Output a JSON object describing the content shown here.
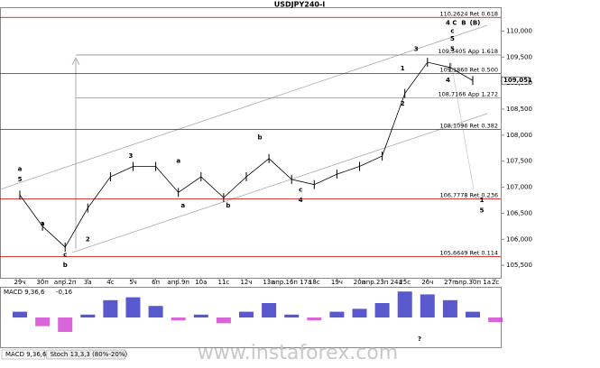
{
  "chart_data": [
    {
      "type": "line",
      "title": "USDJPY240-I",
      "categories": [
        "29ч",
        "30п",
        "апр.2п",
        "3а",
        "4с",
        "5ч",
        "6п",
        "апр.9п",
        "10а",
        "11с",
        "12ч",
        "13п",
        "апр.16п 17а",
        "18с",
        "19ч",
        "20п",
        "апр.23п 24а",
        "25с",
        "26ч",
        "27п",
        "апр.30п 1а",
        "2с"
      ],
      "series": [
        {
          "name": "USDJPY240-I",
          "color": "#000000",
          "values": [
            106.85,
            106.25,
            105.85,
            106.6,
            107.2,
            107.4,
            107.4,
            106.9,
            107.2,
            106.8,
            107.2,
            107.55,
            107.15,
            107.05,
            107.25,
            107.4,
            107.6,
            108.8,
            109.4,
            109.3,
            109.05,
            null
          ]
        }
      ],
      "ylim": [
        105.26,
        110.44
      ],
      "yticks": [
        {
          "value": 105.5,
          "label": "105,500"
        },
        {
          "value": 106,
          "label": "106,000"
        },
        {
          "value": 106.5,
          "label": "106,500"
        },
        {
          "value": 107,
          "label": "107,000"
        },
        {
          "value": 107.5,
          "label": "107,500"
        },
        {
          "value": 108,
          "label": "108,000"
        },
        {
          "value": 108.5,
          "label": "108,500"
        },
        {
          "value": 109,
          "label": "109,000"
        },
        {
          "value": 109.5,
          "label": "109,500"
        },
        {
          "value": 110,
          "label": "110,000"
        }
      ],
      "current_price": {
        "value": 109.051,
        "label": "109,051"
      },
      "levels": [
        {
          "value": 110.2624,
          "label": "110,2624 Ret 0.618",
          "color": "#c00000"
        },
        {
          "value": 109.5405,
          "label": "109,5405 App 1.618",
          "color": "#909090"
        },
        {
          "value": 109.186,
          "label": "109,1860 Ret 0.500",
          "color": "#c00000"
        },
        {
          "value": 108.7166,
          "label": "108,7166 App 1.272",
          "color": "#909090"
        },
        {
          "value": 108.1096,
          "label": "108,1096 Ret 0.382",
          "color": "#c00000"
        },
        {
          "value": 106.7778,
          "label": "106,7778 Ret 0.236",
          "color": "#c00000"
        },
        {
          "value": 105.6649,
          "label": "105,6649 Ret 0.114",
          "color": "#c00000"
        }
      ],
      "annotations": [
        {
          "text": "a",
          "x": 0,
          "y": 107.35,
          "color": "#000000"
        },
        {
          "text": "5",
          "x": 0,
          "y": 107.15,
          "color": "#3030c0"
        },
        {
          "text": "a",
          "x": 1,
          "y": 106.3,
          "color": "#3030c0"
        },
        {
          "text": "b",
          "x": 2,
          "y": 105.5,
          "color": "#000000"
        },
        {
          "text": "c",
          "x": 2,
          "y": 105.7,
          "color": "#3030c0"
        },
        {
          "text": "2",
          "x": 3,
          "y": 106.0,
          "color": "#3030c0"
        },
        {
          "text": "3",
          "x": 4.9,
          "y": 107.6,
          "color": "#3030c0"
        },
        {
          "text": "a",
          "x": 7,
          "y": 107.5,
          "color": "#c00000"
        },
        {
          "text": "a",
          "x": 7.2,
          "y": 106.65,
          "color": "#000000"
        },
        {
          "text": "b",
          "x": 9.2,
          "y": 106.65,
          "color": "#c00000"
        },
        {
          "text": "b",
          "x": 10.6,
          "y": 107.95,
          "color": "#000000"
        },
        {
          "text": "c",
          "x": 12.4,
          "y": 106.95,
          "color": "#c00000"
        },
        {
          "text": "4",
          "x": 12.4,
          "y": 106.75,
          "color": "#3030c0"
        },
        {
          "text": "1",
          "x": 16.9,
          "y": 109.28,
          "color": "#000000"
        },
        {
          "text": "2",
          "x": 16.9,
          "y": 108.6,
          "color": "#000000"
        },
        {
          "text": "3",
          "x": 17.5,
          "y": 109.65,
          "color": "#000000"
        },
        {
          "text": "4",
          "x": 18.9,
          "y": 109.05,
          "color": "#000000"
        },
        {
          "text": "5",
          "x": 19.1,
          "y": 109.65,
          "color": "#3030c0"
        },
        {
          "text": "5",
          "x": 19.1,
          "y": 109.85,
          "color": "#3030c0"
        },
        {
          "text": "c",
          "x": 19.1,
          "y": 110.0,
          "color": "#000000"
        },
        {
          "text": "4",
          "x": 18.9,
          "y": 110.15,
          "color": "#208020"
        },
        {
          "text": "C",
          "x": 19.2,
          "y": 110.15,
          "color": "#3030c0"
        },
        {
          "text": "B",
          "x": 19.6,
          "y": 110.15,
          "color": "#c00000"
        },
        {
          "text": "(B)",
          "x": 20.1,
          "y": 110.15,
          "color": "#c00000"
        },
        {
          "text": "1",
          "x": 20.4,
          "y": 106.75,
          "color": "#000000"
        },
        {
          "text": "5",
          "x": 20.4,
          "y": 106.55,
          "color": "#208020"
        }
      ],
      "watermark": "www.instaforex.com"
    },
    {
      "type": "bar",
      "title": "MACD 9,36,6",
      "values": [
        0.2,
        -0.3,
        -0.5,
        0.1,
        0.6,
        0.7,
        0.4,
        -0.1,
        0.1,
        -0.2,
        0.2,
        0.5,
        0.1,
        -0.1,
        0.2,
        0.3,
        0.5,
        0.9,
        0.8,
        0.6,
        0.2,
        -0.16
      ],
      "value_labels": [
        null,
        null,
        null,
        null,
        null,
        null,
        null,
        null,
        null,
        null,
        null,
        null,
        null,
        null,
        null,
        null,
        null,
        null,
        null,
        null,
        null,
        "-0,16"
      ],
      "colors": {
        "positive": "#3030c0",
        "negative": "#d040d0"
      },
      "ylim": [
        -1,
        1
      ],
      "annotation": "?"
    },
    {
      "type": "tabs",
      "tabs": [
        "MACD 9,36,6",
        "Stoch 13,3,3 (80%-20%)"
      ]
    }
  ]
}
